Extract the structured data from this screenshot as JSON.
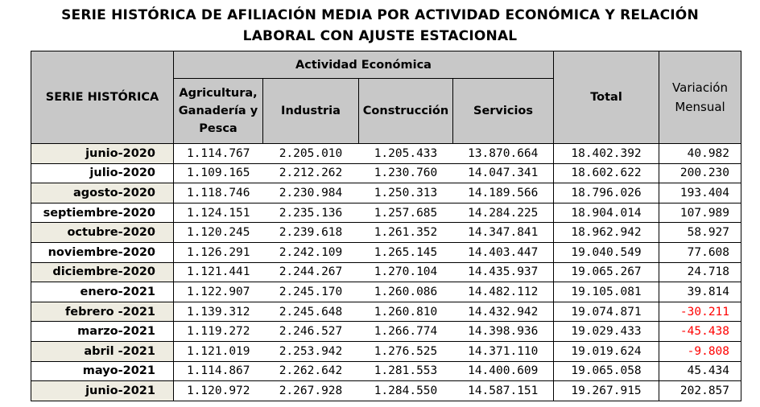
{
  "title_line1": "SERIE HISTÓRICA DE AFILIACIÓN MEDIA POR ACTIVIDAD ECONÓMICA Y RELACIÓN",
  "title_line2": "LABORAL CON AJUSTE ESTACIONAL",
  "headers": {
    "serie": "SERIE HISTÓRICA",
    "actividad": "Actividad Económica",
    "agricultura": "Agricultura, Ganadería y Pesca",
    "industria": "Industria",
    "construccion": "Construcción",
    "servicios": "Servicios",
    "total": "Total",
    "variacion": "Variación Mensual"
  },
  "colors": {
    "header_bg": "#c8c8c8",
    "shaded_row": "#eeece1",
    "negative": "#ff0000"
  },
  "rows": [
    {
      "date": "junio-2020",
      "agri": "1.114.767",
      "ind": "2.205.010",
      "cons": "1.205.433",
      "serv": "13.870.664",
      "total": "18.402.392",
      "var": "40.982",
      "neg": false,
      "shaded": true
    },
    {
      "date": "julio-2020",
      "agri": "1.109.165",
      "ind": "2.212.262",
      "cons": "1.230.760",
      "serv": "14.047.341",
      "total": "18.602.622",
      "var": "200.230",
      "neg": false,
      "shaded": false
    },
    {
      "date": "agosto-2020",
      "agri": "1.118.746",
      "ind": "2.230.984",
      "cons": "1.250.313",
      "serv": "14.189.566",
      "total": "18.796.026",
      "var": "193.404",
      "neg": false,
      "shaded": true
    },
    {
      "date": "septiembre-2020",
      "agri": "1.124.151",
      "ind": "2.235.136",
      "cons": "1.257.685",
      "serv": "14.284.225",
      "total": "18.904.014",
      "var": "107.989",
      "neg": false,
      "shaded": false
    },
    {
      "date": "octubre-2020",
      "agri": "1.120.245",
      "ind": "2.239.618",
      "cons": "1.261.352",
      "serv": "14.347.841",
      "total": "18.962.942",
      "var": "58.927",
      "neg": false,
      "shaded": true
    },
    {
      "date": "noviembre-2020",
      "agri": "1.126.291",
      "ind": "2.242.109",
      "cons": "1.265.145",
      "serv": "14.403.447",
      "total": "19.040.549",
      "var": "77.608",
      "neg": false,
      "shaded": false
    },
    {
      "date": "diciembre-2020",
      "agri": "1.121.441",
      "ind": "2.244.267",
      "cons": "1.270.104",
      "serv": "14.435.937",
      "total": "19.065.267",
      "var": "24.718",
      "neg": false,
      "shaded": true
    },
    {
      "date": "enero-2021",
      "agri": "1.122.907",
      "ind": "2.245.170",
      "cons": "1.260.086",
      "serv": "14.482.112",
      "total": "19.105.081",
      "var": "39.814",
      "neg": false,
      "shaded": false
    },
    {
      "date": "febrero -2021",
      "agri": "1.139.312",
      "ind": "2.245.648",
      "cons": "1.260.810",
      "serv": "14.432.942",
      "total": "19.074.871",
      "var": "-30.211",
      "neg": true,
      "shaded": true
    },
    {
      "date": "marzo-2021",
      "agri": "1.119.272",
      "ind": "2.246.527",
      "cons": "1.266.774",
      "serv": "14.398.936",
      "total": "19.029.433",
      "var": "-45.438",
      "neg": true,
      "shaded": false
    },
    {
      "date": "abril -2021",
      "agri": "1.121.019",
      "ind": "2.253.942",
      "cons": "1.276.525",
      "serv": "14.371.110",
      "total": "19.019.624",
      "var": "-9.808",
      "neg": true,
      "shaded": true
    },
    {
      "date": "mayo-2021",
      "agri": "1.114.867",
      "ind": "2.262.642",
      "cons": "1.281.553",
      "serv": "14.400.609",
      "total": "19.065.058",
      "var": "45.434",
      "neg": false,
      "shaded": false
    },
    {
      "date": "junio-2021",
      "agri": "1.120.972",
      "ind": "2.267.928",
      "cons": "1.284.550",
      "serv": "14.587.151",
      "total": "19.267.915",
      "var": "202.857",
      "neg": false,
      "shaded": true
    }
  ]
}
